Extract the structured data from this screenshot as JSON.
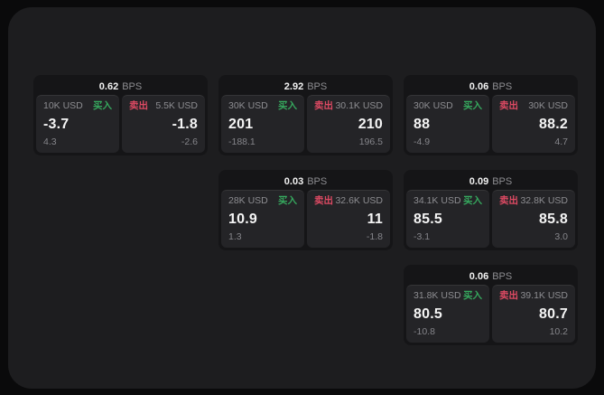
{
  "labels": {
    "bps_suffix": "BPS",
    "buy": "买入",
    "sell": "卖出"
  },
  "colors": {
    "background": "#0a0a0b",
    "panel": "#1d1d1f",
    "card": "#151517",
    "subpanel": "#242427",
    "buy": "#36a85e",
    "sell": "#dd4a63",
    "text_primary": "#f5f5f5",
    "text_muted": "#8d8d91"
  },
  "cards": [
    {
      "grid": {
        "row": 1,
        "col": 1
      },
      "bps": "0.62",
      "buy": {
        "size": "10K USD",
        "price": "-3.7",
        "delta": "4.3"
      },
      "sell": {
        "size": "5.5K USD",
        "price": "-1.8",
        "delta": "-2.6"
      }
    },
    {
      "grid": {
        "row": 1,
        "col": 2
      },
      "bps": "2.92",
      "buy": {
        "size": "30K USD",
        "price": "201",
        "delta": "-188.1"
      },
      "sell": {
        "size": "30.1K USD",
        "price": "210",
        "delta": "196.5"
      }
    },
    {
      "grid": {
        "row": 1,
        "col": 3
      },
      "bps": "0.06",
      "buy": {
        "size": "30K USD",
        "price": "88",
        "delta": "-4.9"
      },
      "sell": {
        "size": "30K USD",
        "price": "88.2",
        "delta": "4.7"
      }
    },
    {
      "grid": {
        "row": 2,
        "col": 2
      },
      "bps": "0.03",
      "buy": {
        "size": "28K USD",
        "price": "10.9",
        "delta": "1.3"
      },
      "sell": {
        "size": "32.6K USD",
        "price": "11",
        "delta": "-1.8"
      }
    },
    {
      "grid": {
        "row": 2,
        "col": 3
      },
      "bps": "0.09",
      "buy": {
        "size": "34.1K USD",
        "price": "85.5",
        "delta": "-3.1"
      },
      "sell": {
        "size": "32.8K USD",
        "price": "85.8",
        "delta": "3.0"
      }
    },
    {
      "grid": {
        "row": 3,
        "col": 3
      },
      "bps": "0.06",
      "buy": {
        "size": "31.8K USD",
        "price": "80.5",
        "delta": "-10.8"
      },
      "sell": {
        "size": "39.1K USD",
        "price": "80.7",
        "delta": "10.2"
      }
    }
  ]
}
